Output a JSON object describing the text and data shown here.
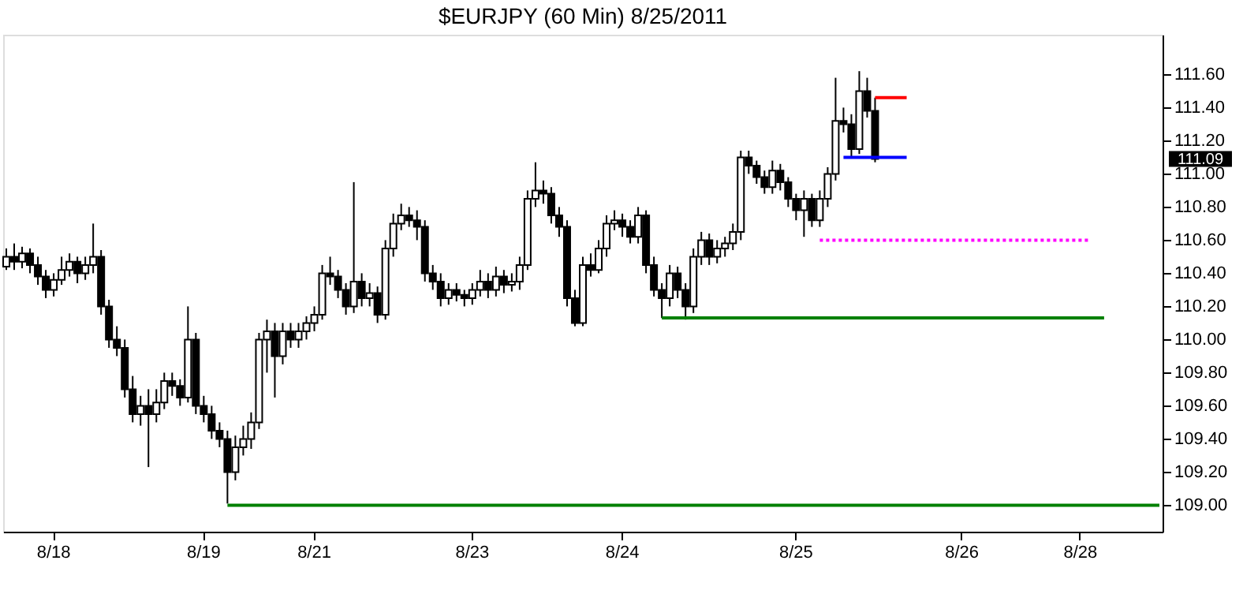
{
  "chart_data": {
    "type": "candlestick",
    "title": "$EURJPY (60 Min)  8/25/2011",
    "categories": [
      null,
      null,
      null,
      null,
      null,
      null,
      "8/18",
      null,
      null,
      null,
      null,
      null,
      null,
      null,
      null,
      null,
      null,
      null,
      null,
      null,
      null,
      null,
      null,
      null,
      null,
      "8/19",
      null,
      null,
      null,
      null,
      null,
      null,
      null,
      null,
      null,
      null,
      null,
      null,
      null,
      "8/21",
      null,
      null,
      null,
      null,
      null,
      null,
      null,
      null,
      null,
      null,
      null,
      null,
      null,
      null,
      null,
      null,
      null,
      null,
      null,
      "8/23",
      null,
      null,
      null,
      null,
      null,
      null,
      null,
      null,
      null,
      null,
      null,
      null,
      null,
      null,
      null,
      null,
      null,
      null,
      "8/24",
      null,
      null,
      null,
      null,
      null,
      null,
      null,
      null,
      null,
      null,
      null,
      null,
      null,
      null,
      null,
      null,
      null,
      null,
      null,
      null,
      null,
      "8/25",
      null,
      null,
      null,
      null,
      null,
      null,
      null,
      null,
      null,
      null,
      null,
      null,
      null,
      null,
      null,
      null,
      null,
      null,
      null,
      null,
      "8/26",
      null,
      null,
      null,
      null,
      null,
      null,
      null,
      null,
      null,
      null,
      null,
      null,
      null,
      null,
      "8/28",
      null,
      null,
      null,
      null,
      null,
      null,
      null,
      null,
      null,
      null
    ],
    "ohlc": [
      [
        110.44,
        110.55,
        110.42,
        110.5
      ],
      [
        110.5,
        110.58,
        110.42,
        110.47
      ],
      [
        110.47,
        110.56,
        110.43,
        110.52
      ],
      [
        110.52,
        110.55,
        110.4,
        110.45
      ],
      [
        110.45,
        110.5,
        110.33,
        110.38
      ],
      [
        110.38,
        110.42,
        110.25,
        110.3
      ],
      [
        110.3,
        110.4,
        110.26,
        110.36
      ],
      [
        110.36,
        110.5,
        110.33,
        110.42
      ],
      [
        110.42,
        110.52,
        110.38,
        110.47
      ],
      [
        110.47,
        110.5,
        110.34,
        110.4
      ],
      [
        110.4,
        110.5,
        110.36,
        110.45
      ],
      [
        110.45,
        110.7,
        110.4,
        110.5
      ],
      [
        110.5,
        110.54,
        110.15,
        110.2
      ],
      [
        110.2,
        110.24,
        109.95,
        110.0
      ],
      [
        110.0,
        110.08,
        109.9,
        109.95
      ],
      [
        109.95,
        110.0,
        109.65,
        109.7
      ],
      [
        109.7,
        109.78,
        109.5,
        109.55
      ],
      [
        109.55,
        109.66,
        109.48,
        109.6
      ],
      [
        109.6,
        109.7,
        109.23,
        109.55
      ],
      [
        109.55,
        109.7,
        109.5,
        109.62
      ],
      [
        109.62,
        109.8,
        109.58,
        109.75
      ],
      [
        109.75,
        109.8,
        109.66,
        109.72
      ],
      [
        109.72,
        109.76,
        109.6,
        109.65
      ],
      [
        109.65,
        110.2,
        109.62,
        110.0
      ],
      [
        110.0,
        110.04,
        109.55,
        109.6
      ],
      [
        109.6,
        109.66,
        109.5,
        109.55
      ],
      [
        109.55,
        109.6,
        109.4,
        109.45
      ],
      [
        109.45,
        109.5,
        109.35,
        109.4
      ],
      [
        109.4,
        109.45,
        109.01,
        109.2
      ],
      [
        109.2,
        109.42,
        109.15,
        109.35
      ],
      [
        109.35,
        109.48,
        109.3,
        109.4
      ],
      [
        109.4,
        109.56,
        109.34,
        109.5
      ],
      [
        109.5,
        110.04,
        109.46,
        110.0
      ],
      [
        110.0,
        110.12,
        109.8,
        110.05
      ],
      [
        110.05,
        110.1,
        109.65,
        109.9
      ],
      [
        109.9,
        110.1,
        109.85,
        110.05
      ],
      [
        110.05,
        110.1,
        109.95,
        110.0
      ],
      [
        110.0,
        110.1,
        109.95,
        110.05
      ],
      [
        110.05,
        110.14,
        110.0,
        110.1
      ],
      [
        110.1,
        110.2,
        110.05,
        110.15
      ],
      [
        110.15,
        110.45,
        110.12,
        110.4
      ],
      [
        110.4,
        110.5,
        110.33,
        110.38
      ],
      [
        110.38,
        110.42,
        110.25,
        110.3
      ],
      [
        110.3,
        110.34,
        110.15,
        110.2
      ],
      [
        110.2,
        110.95,
        110.16,
        110.35
      ],
      [
        110.35,
        110.4,
        110.2,
        110.25
      ],
      [
        110.25,
        110.34,
        110.2,
        110.28
      ],
      [
        110.28,
        110.32,
        110.1,
        110.15
      ],
      [
        110.15,
        110.6,
        110.12,
        110.55
      ],
      [
        110.55,
        110.76,
        110.5,
        110.7
      ],
      [
        110.7,
        110.82,
        110.66,
        110.75
      ],
      [
        110.75,
        110.8,
        110.68,
        110.72
      ],
      [
        110.72,
        110.78,
        110.6,
        110.68
      ],
      [
        110.68,
        110.72,
        110.35,
        110.4
      ],
      [
        110.4,
        110.45,
        110.3,
        110.35
      ],
      [
        110.35,
        110.4,
        110.2,
        110.25
      ],
      [
        110.25,
        110.34,
        110.21,
        110.3
      ],
      [
        110.3,
        110.34,
        110.23,
        110.27
      ],
      [
        110.27,
        110.3,
        110.2,
        110.25
      ],
      [
        110.25,
        110.34,
        110.21,
        110.3
      ],
      [
        110.3,
        110.42,
        110.26,
        110.35
      ],
      [
        110.35,
        110.4,
        110.25,
        110.3
      ],
      [
        110.3,
        110.44,
        110.26,
        110.38
      ],
      [
        110.38,
        110.42,
        110.28,
        110.33
      ],
      [
        110.33,
        110.4,
        110.29,
        110.35
      ],
      [
        110.35,
        110.5,
        110.3,
        110.45
      ],
      [
        110.45,
        110.9,
        110.42,
        110.85
      ],
      [
        110.85,
        111.07,
        110.8,
        110.9
      ],
      [
        110.9,
        110.96,
        110.82,
        110.88
      ],
      [
        110.88,
        110.92,
        110.7,
        110.75
      ],
      [
        110.75,
        110.8,
        110.62,
        110.68
      ],
      [
        110.68,
        110.72,
        110.2,
        110.25
      ],
      [
        110.25,
        110.3,
        110.08,
        110.1
      ],
      [
        110.1,
        110.5,
        110.08,
        110.45
      ],
      [
        110.45,
        110.52,
        110.38,
        110.42
      ],
      [
        110.42,
        110.6,
        110.4,
        110.55
      ],
      [
        110.55,
        110.75,
        110.5,
        110.7
      ],
      [
        110.7,
        110.78,
        110.66,
        110.72
      ],
      [
        110.72,
        110.76,
        110.62,
        110.68
      ],
      [
        110.68,
        110.72,
        110.58,
        110.62
      ],
      [
        110.62,
        110.8,
        110.58,
        110.75
      ],
      [
        110.75,
        110.78,
        110.4,
        110.45
      ],
      [
        110.45,
        110.5,
        110.26,
        110.3
      ],
      [
        110.3,
        110.34,
        110.13,
        110.25
      ],
      [
        110.25,
        110.45,
        110.2,
        110.4
      ],
      [
        110.4,
        110.44,
        110.25,
        110.3
      ],
      [
        110.3,
        110.34,
        110.12,
        110.2
      ],
      [
        110.2,
        110.55,
        110.16,
        110.5
      ],
      [
        110.5,
        110.65,
        110.45,
        110.6
      ],
      [
        110.6,
        110.64,
        110.45,
        110.5
      ],
      [
        110.5,
        110.6,
        110.46,
        110.55
      ],
      [
        110.55,
        110.62,
        110.5,
        110.58
      ],
      [
        110.58,
        110.7,
        110.54,
        110.65
      ],
      [
        110.65,
        111.14,
        110.6,
        111.1
      ],
      [
        111.1,
        111.14,
        111.0,
        111.05
      ],
      [
        111.05,
        111.08,
        110.94,
        110.98
      ],
      [
        110.98,
        111.02,
        110.88,
        110.92
      ],
      [
        110.92,
        111.08,
        110.88,
        111.02
      ],
      [
        111.02,
        111.06,
        110.9,
        110.95
      ],
      [
        110.95,
        110.98,
        110.8,
        110.85
      ],
      [
        110.85,
        110.88,
        110.72,
        110.78
      ],
      [
        110.78,
        110.9,
        110.62,
        110.85
      ],
      [
        110.85,
        110.88,
        110.68,
        110.72
      ],
      [
        110.72,
        110.9,
        110.68,
        110.85
      ],
      [
        110.85,
        111.04,
        110.8,
        111.0
      ],
      [
        111.0,
        111.58,
        110.96,
        111.32
      ],
      [
        111.32,
        111.4,
        111.25,
        111.3
      ],
      [
        111.3,
        111.36,
        111.1,
        111.15
      ],
      [
        111.15,
        111.62,
        111.12,
        111.5
      ],
      [
        111.5,
        111.58,
        111.34,
        111.38
      ],
      [
        111.38,
        111.46,
        111.07,
        111.09
      ],
      null,
      null,
      null,
      null,
      null,
      null,
      null,
      null,
      null,
      null,
      null,
      null,
      null,
      null,
      null,
      null,
      null,
      null,
      null,
      null,
      null,
      null,
      null,
      null,
      null,
      null,
      null,
      null,
      null,
      null,
      null,
      null,
      null,
      null,
      null,
      null
    ],
    "series": [
      {
        "type": "line",
        "color": "#008000",
        "line_style": "solid",
        "values": [
          null,
          null,
          null,
          null,
          null,
          null,
          null,
          null,
          null,
          null,
          null,
          null,
          null,
          null,
          null,
          null,
          null,
          null,
          null,
          null,
          null,
          null,
          null,
          null,
          null,
          null,
          null,
          null,
          109.0,
          109.0,
          109.0,
          109.0,
          109.0,
          109.0,
          109.0,
          109.0,
          109.0,
          109.0,
          109.0,
          109.0,
          109.0,
          109.0,
          109.0,
          109.0,
          109.0,
          109.0,
          109.0,
          109.0,
          109.0,
          109.0,
          109.0,
          109.0,
          109.0,
          109.0,
          109.0,
          109.0,
          109.0,
          109.0,
          109.0,
          109.0,
          109.0,
          109.0,
          109.0,
          109.0,
          109.0,
          109.0,
          109.0,
          109.0,
          109.0,
          109.0,
          109.0,
          109.0,
          109.0,
          109.0,
          109.0,
          109.0,
          109.0,
          109.0,
          109.0,
          109.0,
          109.0,
          109.0,
          109.0,
          109.0,
          109.0,
          109.0,
          109.0,
          109.0,
          109.0,
          109.0,
          109.0,
          109.0,
          109.0,
          109.0,
          109.0,
          109.0,
          109.0,
          109.0,
          109.0,
          109.0,
          109.0,
          109.0,
          109.0,
          109.0,
          109.0,
          109.0,
          109.0,
          109.0,
          109.0,
          109.0,
          109.0,
          109.0,
          109.0,
          109.0,
          109.0,
          109.0,
          109.0,
          109.0,
          109.0,
          109.0,
          109.0,
          109.0,
          109.0,
          109.0,
          109.0,
          109.0,
          109.0,
          109.0,
          109.0,
          109.0,
          109.0,
          109.0,
          109.0,
          109.0,
          109.0,
          109.0,
          109.0,
          109.0,
          109.0,
          109.0,
          109.0,
          109.0,
          109.0,
          109.0,
          109.0,
          109.0,
          109.0
        ]
      },
      {
        "type": "line",
        "color": "#008000",
        "line_style": "solid",
        "values": [
          null,
          null,
          null,
          null,
          null,
          null,
          null,
          null,
          null,
          null,
          null,
          null,
          null,
          null,
          null,
          null,
          null,
          null,
          null,
          null,
          null,
          null,
          null,
          null,
          null,
          null,
          null,
          null,
          null,
          null,
          null,
          null,
          null,
          null,
          null,
          null,
          null,
          null,
          null,
          null,
          null,
          null,
          null,
          null,
          null,
          null,
          null,
          null,
          null,
          null,
          null,
          null,
          null,
          null,
          null,
          null,
          null,
          null,
          null,
          null,
          null,
          null,
          null,
          null,
          null,
          null,
          null,
          null,
          null,
          null,
          null,
          null,
          null,
          null,
          null,
          null,
          null,
          null,
          null,
          null,
          null,
          null,
          null,
          110.13,
          110.13,
          110.13,
          110.13,
          110.13,
          110.13,
          110.13,
          110.13,
          110.13,
          110.13,
          110.13,
          110.13,
          110.13,
          110.13,
          110.13,
          110.13,
          110.13,
          110.13,
          110.13,
          110.13,
          110.13,
          110.13,
          110.13,
          110.13,
          110.13,
          110.13,
          110.13,
          110.13,
          110.13,
          110.13,
          110.13,
          110.13,
          110.13,
          110.13,
          110.13,
          110.13,
          110.13,
          110.13,
          110.13,
          110.13,
          110.13,
          110.13,
          110.13,
          110.13,
          110.13,
          110.13,
          110.13,
          110.13,
          110.13,
          110.13,
          110.13,
          110.13,
          110.13,
          110.13,
          110.13,
          110.13,
          110.13,
          null,
          null,
          null,
          null,
          null,
          null,
          null
        ]
      },
      {
        "type": "line",
        "color": "#ff00ff",
        "line_style": "dotted",
        "values": [
          null,
          null,
          null,
          null,
          null,
          null,
          null,
          null,
          null,
          null,
          null,
          null,
          null,
          null,
          null,
          null,
          null,
          null,
          null,
          null,
          null,
          null,
          null,
          null,
          null,
          null,
          null,
          null,
          null,
          null,
          null,
          null,
          null,
          null,
          null,
          null,
          null,
          null,
          null,
          null,
          null,
          null,
          null,
          null,
          null,
          null,
          null,
          null,
          null,
          null,
          null,
          null,
          null,
          null,
          null,
          null,
          null,
          null,
          null,
          null,
          null,
          null,
          null,
          null,
          null,
          null,
          null,
          null,
          null,
          null,
          null,
          null,
          null,
          null,
          null,
          null,
          null,
          null,
          null,
          null,
          null,
          null,
          null,
          null,
          null,
          null,
          null,
          null,
          null,
          null,
          null,
          null,
          null,
          null,
          null,
          null,
          null,
          null,
          null,
          null,
          null,
          null,
          null,
          110.6,
          110.6,
          110.6,
          110.6,
          110.6,
          110.6,
          110.6,
          110.6,
          110.6,
          110.6,
          110.6,
          110.6,
          110.6,
          110.6,
          110.6,
          110.6,
          110.6,
          110.6,
          110.6,
          110.6,
          110.6,
          110.6,
          110.6,
          110.6,
          110.6,
          110.6,
          110.6,
          110.6,
          110.6,
          110.6,
          110.6,
          110.6,
          110.6,
          110.6,
          110.6,
          null,
          null,
          null,
          null,
          null,
          null,
          null,
          null,
          null
        ]
      },
      {
        "type": "line",
        "color": "#ff0000",
        "line_style": "solid",
        "values": [
          null,
          null,
          null,
          null,
          null,
          null,
          null,
          null,
          null,
          null,
          null,
          null,
          null,
          null,
          null,
          null,
          null,
          null,
          null,
          null,
          null,
          null,
          null,
          null,
          null,
          null,
          null,
          null,
          null,
          null,
          null,
          null,
          null,
          null,
          null,
          null,
          null,
          null,
          null,
          null,
          null,
          null,
          null,
          null,
          null,
          null,
          null,
          null,
          null,
          null,
          null,
          null,
          null,
          null,
          null,
          null,
          null,
          null,
          null,
          null,
          null,
          null,
          null,
          null,
          null,
          null,
          null,
          null,
          null,
          null,
          null,
          null,
          null,
          null,
          null,
          null,
          null,
          null,
          null,
          null,
          null,
          null,
          null,
          null,
          null,
          null,
          null,
          null,
          null,
          null,
          null,
          null,
          null,
          null,
          null,
          null,
          null,
          null,
          null,
          null,
          null,
          null,
          null,
          null,
          null,
          null,
          null,
          null,
          null,
          null,
          111.46,
          111.46,
          111.46,
          111.46,
          111.46,
          null,
          null,
          null,
          null,
          null,
          null,
          null,
          null,
          null,
          null,
          null,
          null,
          null,
          null,
          null,
          null,
          null,
          null,
          null,
          null,
          null,
          null,
          null,
          null,
          null,
          null,
          null,
          null,
          null,
          null,
          null,
          null
        ]
      },
      {
        "type": "line",
        "color": "#0000ff",
        "line_style": "solid",
        "values": [
          null,
          null,
          null,
          null,
          null,
          null,
          null,
          null,
          null,
          null,
          null,
          null,
          null,
          null,
          null,
          null,
          null,
          null,
          null,
          null,
          null,
          null,
          null,
          null,
          null,
          null,
          null,
          null,
          null,
          null,
          null,
          null,
          null,
          null,
          null,
          null,
          null,
          null,
          null,
          null,
          null,
          null,
          null,
          null,
          null,
          null,
          null,
          null,
          null,
          null,
          null,
          null,
          null,
          null,
          null,
          null,
          null,
          null,
          null,
          null,
          null,
          null,
          null,
          null,
          null,
          null,
          null,
          null,
          null,
          null,
          null,
          null,
          null,
          null,
          null,
          null,
          null,
          null,
          null,
          null,
          null,
          null,
          null,
          null,
          null,
          null,
          null,
          null,
          null,
          null,
          null,
          null,
          null,
          null,
          null,
          null,
          null,
          null,
          null,
          null,
          null,
          null,
          null,
          null,
          null,
          null,
          111.1,
          111.1,
          111.1,
          111.1,
          111.1,
          111.1,
          111.1,
          111.1,
          111.1,
          null,
          null,
          null,
          null,
          null,
          null,
          null,
          null,
          null,
          null,
          null,
          null,
          null,
          null,
          null,
          null,
          null,
          null,
          null,
          null,
          null,
          null,
          null,
          null,
          null,
          null,
          null,
          null,
          null,
          null,
          null,
          null
        ]
      }
    ],
    "ylim": [
      108.84,
      111.84
    ],
    "yticks": [
      {
        "value": 109.0,
        "label": "109.00"
      },
      {
        "value": 109.2,
        "label": "109.20"
      },
      {
        "value": 109.4,
        "label": "109.40"
      },
      {
        "value": 109.6,
        "label": "109.60"
      },
      {
        "value": 109.8,
        "label": "109.80"
      },
      {
        "value": 110.0,
        "label": "110.00"
      },
      {
        "value": 110.2,
        "label": "110.20"
      },
      {
        "value": 110.4,
        "label": "110.40"
      },
      {
        "value": 110.6,
        "label": "110.60"
      },
      {
        "value": 110.8,
        "label": "110.80"
      },
      {
        "value": 111.0,
        "label": "111.00"
      },
      {
        "value": 111.2,
        "label": "111.20"
      },
      {
        "value": 111.4,
        "label": "111.40"
      },
      {
        "value": 111.6,
        "label": "111.60"
      }
    ],
    "annotations": [
      "111.09"
    ],
    "grid": false
  }
}
